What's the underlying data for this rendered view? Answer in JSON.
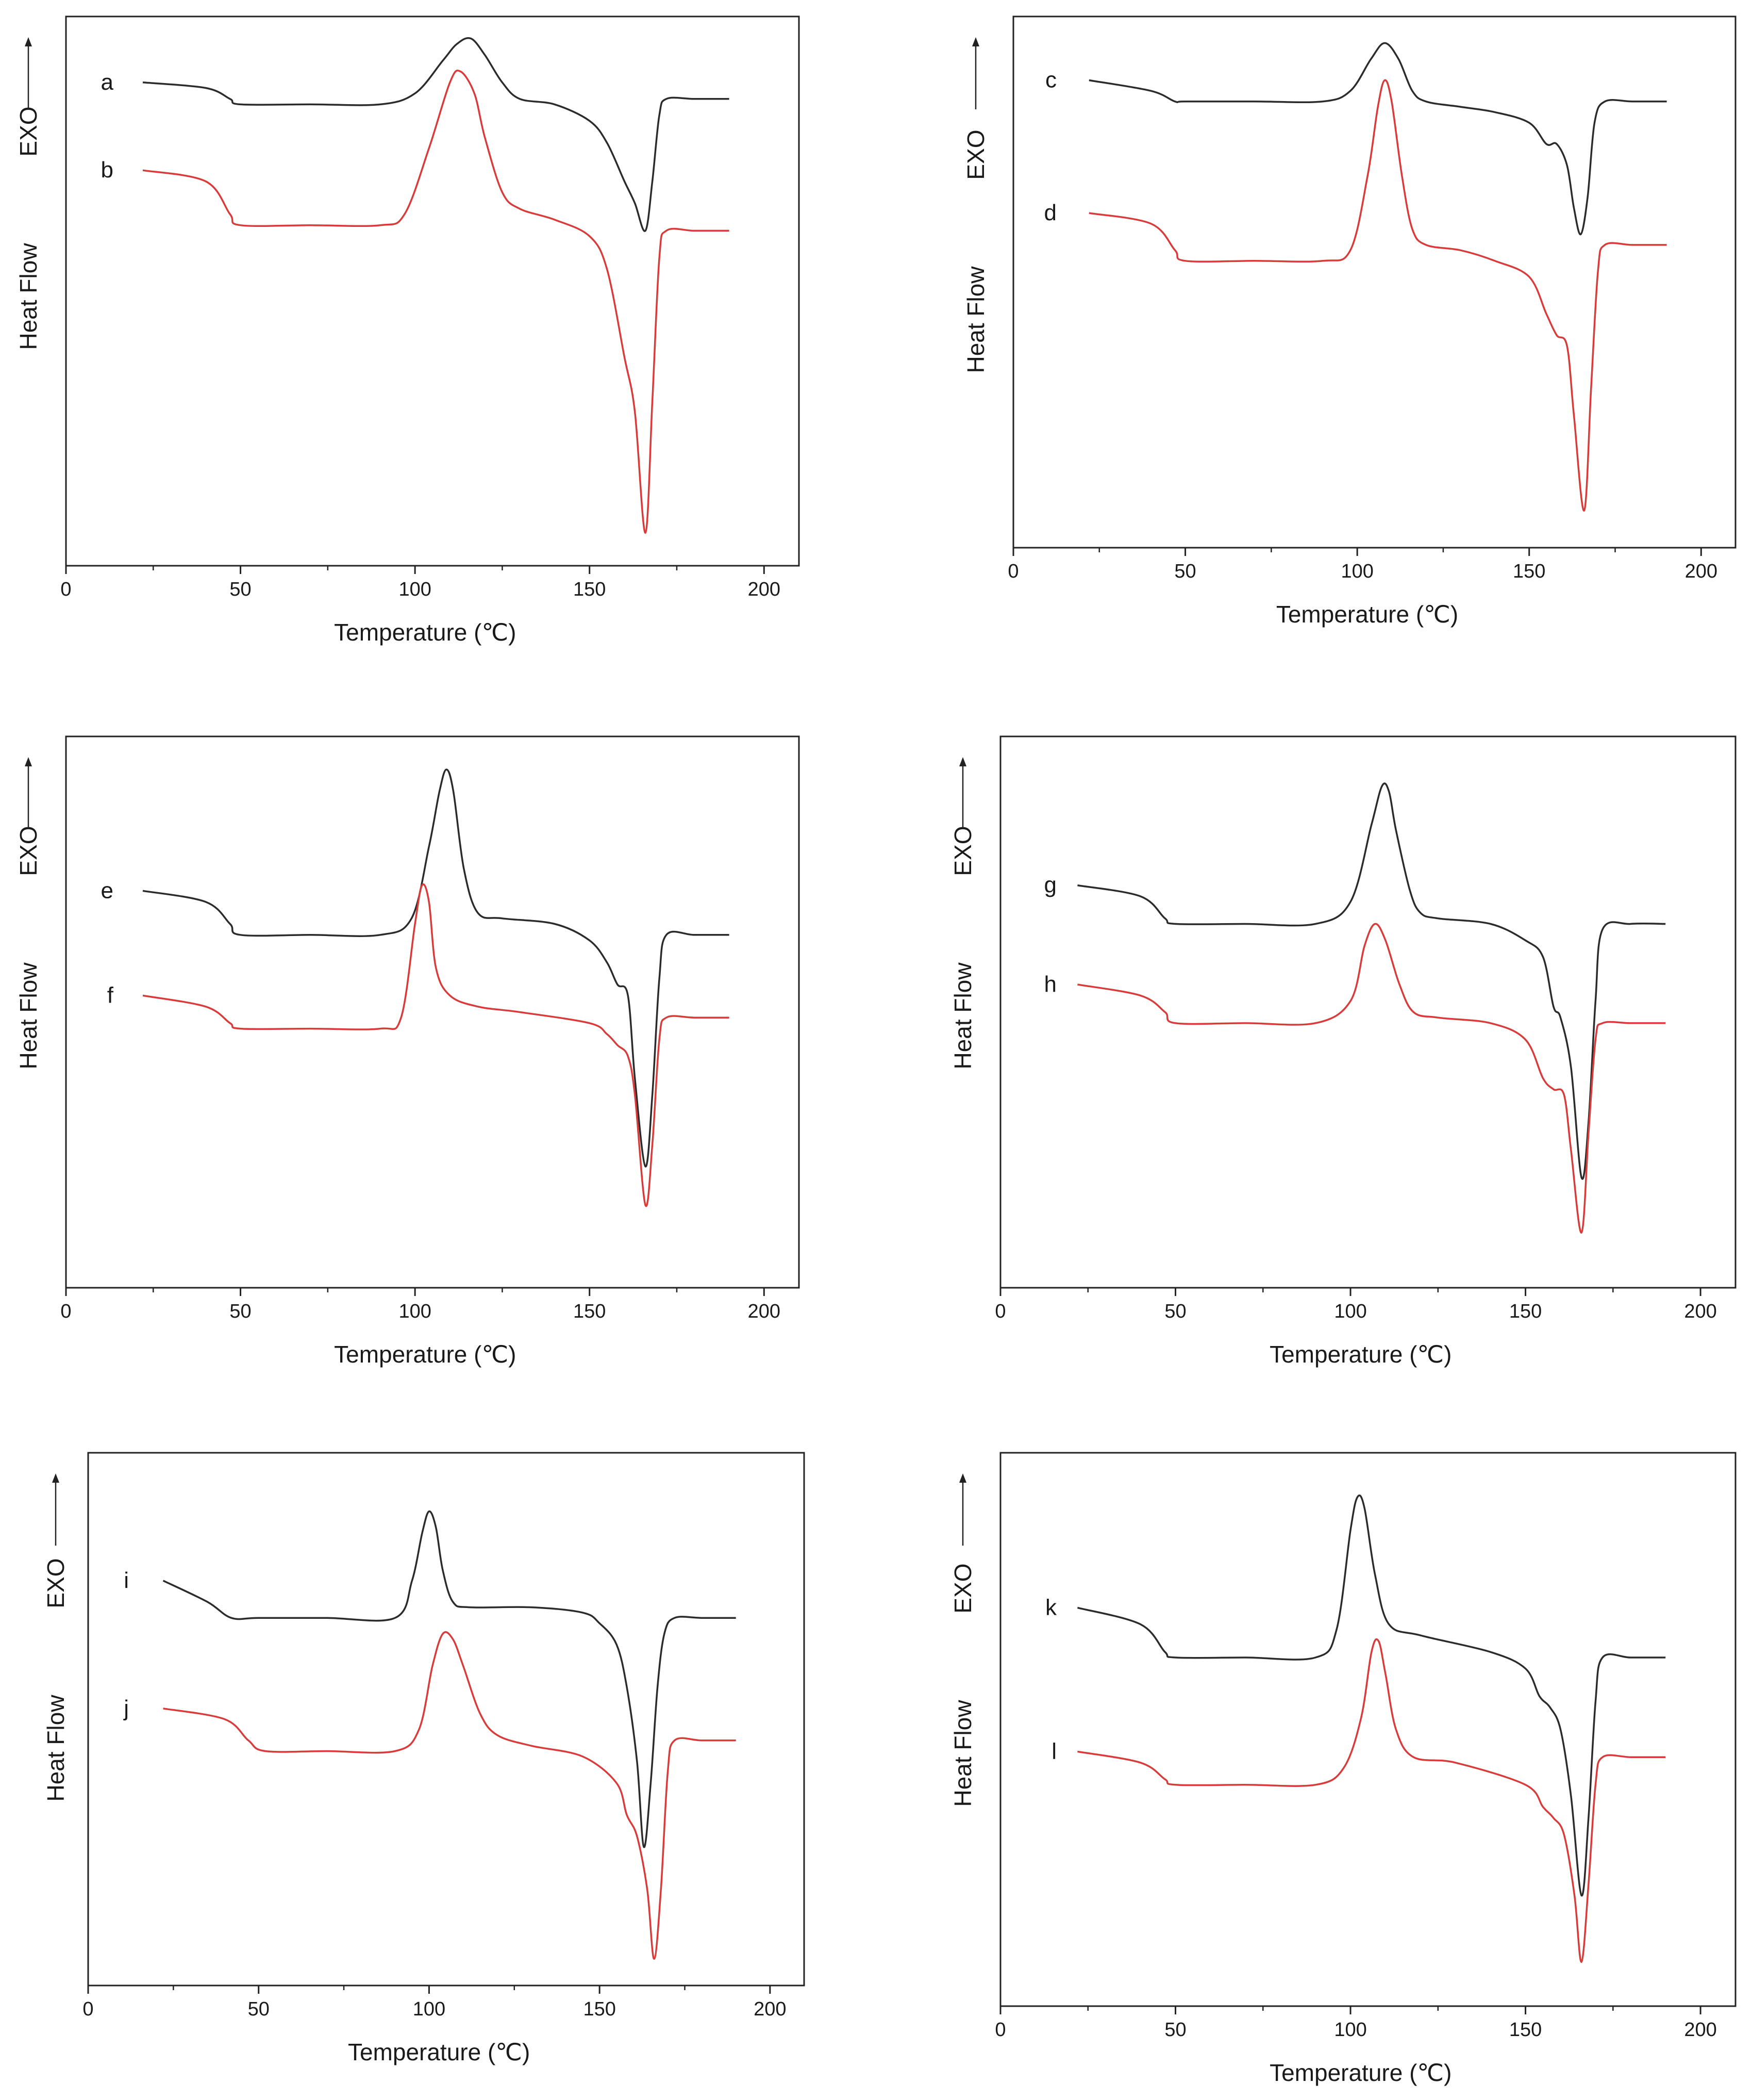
{
  "chart_data": [
    {
      "type": "line",
      "panel_id": "p1",
      "xlabel": "Temperature (℃)",
      "ylabel": "Heat Flow",
      "exo_label": "EXO",
      "xlim": [
        0,
        210
      ],
      "ylim": [
        0,
        100
      ],
      "xticks": [
        0,
        50,
        100,
        150,
        200
      ],
      "xtick_labels": [
        "0",
        "50",
        "100",
        "150",
        "200"
      ],
      "grid": false,
      "series": [
        {
          "name": "a",
          "color": "#2b2b2b",
          "x": [
            22,
            40,
            47,
            50,
            70,
            90,
            100,
            108,
            112,
            116,
            120,
            125,
            130,
            140,
            150,
            155,
            160,
            163,
            166,
            168,
            170,
            172,
            180,
            190
          ],
          "y": [
            88,
            87,
            85,
            84,
            84,
            84,
            86,
            92,
            95,
            96,
            93,
            88,
            85,
            84,
            81,
            77,
            70,
            66,
            61,
            70,
            82,
            85,
            85,
            85
          ]
        },
        {
          "name": "b",
          "color": "#d93a3a",
          "x": [
            22,
            40,
            47,
            50,
            70,
            90,
            97,
            104,
            110,
            113,
            117,
            120,
            125,
            130,
            140,
            150,
            155,
            160,
            163,
            166,
            168,
            170,
            172,
            180,
            190
          ],
          "y": [
            72,
            70,
            64,
            62,
            62,
            62,
            64,
            76,
            88,
            90,
            86,
            78,
            68,
            65,
            63,
            60,
            54,
            38,
            28,
            6,
            30,
            56,
            61,
            61,
            61
          ]
        }
      ]
    },
    {
      "type": "line",
      "panel_id": "p2",
      "xlabel": "Temperature (℃)",
      "ylabel": "Heat Flow",
      "exo_label": "EXO",
      "xlim": [
        0,
        210
      ],
      "ylim": [
        0,
        100
      ],
      "xticks": [
        0,
        50,
        100,
        150,
        200
      ],
      "xtick_labels": [
        "0",
        "50",
        "100",
        "150",
        "200"
      ],
      "grid": false,
      "series": [
        {
          "name": "c",
          "color": "#2b2b2b",
          "x": [
            22,
            40,
            47,
            50,
            70,
            90,
            98,
            104,
            108,
            112,
            116,
            120,
            130,
            140,
            150,
            155,
            158,
            161,
            163,
            165,
            167,
            169,
            172,
            180,
            190
          ],
          "y": [
            88,
            86,
            84,
            84,
            84,
            84,
            86,
            92,
            95,
            92,
            86,
            84,
            83,
            82,
            80,
            76,
            76,
            72,
            64,
            59,
            66,
            80,
            84,
            84,
            84
          ]
        },
        {
          "name": "d",
          "color": "#d93a3a",
          "x": [
            22,
            40,
            47,
            50,
            70,
            90,
            98,
            103,
            106,
            108,
            110,
            113,
            116,
            120,
            130,
            140,
            150,
            155,
            158,
            161,
            163,
            166,
            168,
            170,
            172,
            180,
            190
          ],
          "y": [
            63,
            61,
            56,
            54,
            54,
            54,
            56,
            70,
            83,
            88,
            84,
            70,
            60,
            57,
            56,
            54,
            51,
            44,
            40,
            38,
            25,
            7,
            30,
            52,
            57,
            57,
            57
          ]
        }
      ]
    },
    {
      "type": "line",
      "panel_id": "p3",
      "xlabel": "Temperature (℃)",
      "ylabel": "Heat Flow",
      "exo_label": "EXO",
      "xlim": [
        0,
        210
      ],
      "ylim": [
        0,
        100
      ],
      "xticks": [
        0,
        50,
        100,
        150,
        200
      ],
      "xtick_labels": [
        "0",
        "50",
        "100",
        "150",
        "200"
      ],
      "grid": false,
      "series": [
        {
          "name": "e",
          "color": "#2b2b2b",
          "x": [
            22,
            40,
            47,
            50,
            70,
            90,
            99,
            104,
            107,
            109,
            111,
            114,
            118,
            125,
            140,
            150,
            155,
            158,
            161,
            163,
            166,
            168,
            170,
            172,
            180,
            190
          ],
          "y": [
            72,
            70,
            66,
            64,
            64,
            64,
            67,
            80,
            90,
            94,
            90,
            76,
            68,
            67,
            66,
            63,
            59,
            55,
            53,
            38,
            22,
            35,
            56,
            64,
            64,
            64
          ]
        },
        {
          "name": "f",
          "color": "#d93a3a",
          "x": [
            22,
            40,
            47,
            50,
            70,
            90,
            96,
            100,
            102,
            104,
            106,
            110,
            118,
            130,
            150,
            155,
            158,
            161,
            163,
            166,
            168,
            170,
            172,
            180,
            190
          ],
          "y": [
            53,
            51,
            48,
            47,
            47,
            47,
            49,
            66,
            73,
            70,
            58,
            53,
            51,
            50,
            48,
            46,
            44,
            42,
            35,
            15,
            26,
            45,
            49,
            49,
            49
          ]
        }
      ]
    },
    {
      "type": "line",
      "panel_id": "p4",
      "xlabel": "Temperature (℃)",
      "ylabel": "Heat Flow",
      "exo_label": "EXO",
      "xlim": [
        0,
        210
      ],
      "ylim": [
        0,
        100
      ],
      "xticks": [
        0,
        50,
        100,
        150,
        200
      ],
      "xtick_labels": [
        "0",
        "50",
        "100",
        "150",
        "200"
      ],
      "grid": false,
      "series": [
        {
          "name": "g",
          "color": "#2b2b2b",
          "x": [
            22,
            40,
            47,
            50,
            70,
            90,
            100,
            106,
            109,
            111,
            113,
            117,
            120,
            125,
            140,
            150,
            155,
            158,
            160,
            163,
            166,
            168,
            170,
            172,
            180,
            190
          ],
          "y": [
            73,
            71,
            67,
            66,
            66,
            66,
            70,
            84,
            91,
            90,
            83,
            72,
            68,
            67,
            66,
            63,
            60,
            51,
            49,
            40,
            20,
            30,
            52,
            65,
            66,
            66
          ]
        },
        {
          "name": "h",
          "color": "#d93a3a",
          "x": [
            22,
            40,
            47,
            50,
            70,
            90,
            100,
            104,
            107,
            110,
            114,
            118,
            125,
            140,
            150,
            155,
            158,
            161,
            163,
            166,
            168,
            170,
            172,
            180,
            190
          ],
          "y": [
            55,
            53,
            50,
            48,
            48,
            48,
            52,
            62,
            66,
            63,
            55,
            50,
            49,
            48,
            45,
            38,
            36,
            35,
            25,
            10,
            28,
            45,
            48,
            48,
            48
          ]
        }
      ]
    },
    {
      "type": "line",
      "panel_id": "p5",
      "xlabel": "Temperature (℃)",
      "ylabel": "Heat Flow",
      "exo_label": "EXO",
      "xlim": [
        0,
        210
      ],
      "ylim": [
        0,
        100
      ],
      "xticks": [
        0,
        50,
        100,
        150,
        200
      ],
      "xtick_labels": [
        "0",
        "50",
        "100",
        "150",
        "200"
      ],
      "grid": false,
      "series": [
        {
          "name": "i",
          "color": "#2b2b2b",
          "x": [
            22,
            35,
            42,
            50,
            70,
            90,
            95,
            98,
            100,
            102,
            104,
            107,
            112,
            130,
            145,
            150,
            155,
            158,
            161,
            163,
            165,
            167,
            169,
            172,
            180,
            190
          ],
          "y": [
            76,
            72,
            69,
            69,
            69,
            69,
            76,
            85,
            89,
            86,
            78,
            72,
            71,
            71,
            70,
            68,
            64,
            56,
            42,
            26,
            38,
            56,
            66,
            69,
            69,
            69
          ]
        },
        {
          "name": "j",
          "color": "#d93a3a",
          "x": [
            22,
            40,
            47,
            52,
            70,
            90,
            97,
            101,
            104,
            107,
            110,
            115,
            120,
            130,
            145,
            155,
            158,
            161,
            164,
            166,
            168,
            170,
            172,
            180,
            190
          ],
          "y": [
            52,
            50,
            46,
            44,
            44,
            44,
            48,
            60,
            66,
            65,
            60,
            51,
            47,
            45,
            43,
            38,
            32,
            28,
            18,
            5,
            18,
            40,
            46,
            46,
            46
          ]
        }
      ]
    },
    {
      "type": "line",
      "panel_id": "p6",
      "xlabel": "Temperature (℃)",
      "ylabel": "Heat Flow",
      "exo_label": "EXO",
      "xlim": [
        0,
        210
      ],
      "ylim": [
        0,
        100
      ],
      "xticks": [
        0,
        50,
        100,
        150,
        200
      ],
      "xtick_labels": [
        "0",
        "50",
        "100",
        "150",
        "200"
      ],
      "grid": false,
      "series": [
        {
          "name": "k",
          "color": "#2b2b2b",
          "x": [
            22,
            40,
            47,
            50,
            70,
            90,
            96,
            100,
            102,
            104,
            107,
            111,
            120,
            140,
            150,
            154,
            157,
            160,
            163,
            166,
            168,
            170,
            172,
            180,
            190
          ],
          "y": [
            72,
            69,
            64,
            63,
            63,
            63,
            68,
            86,
            92,
            90,
            78,
            69,
            67,
            64,
            61,
            56,
            54,
            50,
            38,
            20,
            34,
            55,
            63,
            63,
            63
          ]
        },
        {
          "name": "l",
          "color": "#d93a3a",
          "x": [
            22,
            40,
            47,
            50,
            70,
            90,
            98,
            103,
            106,
            108,
            110,
            113,
            118,
            130,
            150,
            155,
            158,
            161,
            164,
            166,
            168,
            170,
            172,
            180,
            190
          ],
          "y": [
            46,
            44,
            41,
            40,
            40,
            40,
            43,
            52,
            64,
            66,
            60,
            50,
            45,
            44,
            40,
            36,
            34,
            31,
            20,
            8,
            22,
            40,
            45,
            45,
            45
          ]
        }
      ]
    }
  ]
}
